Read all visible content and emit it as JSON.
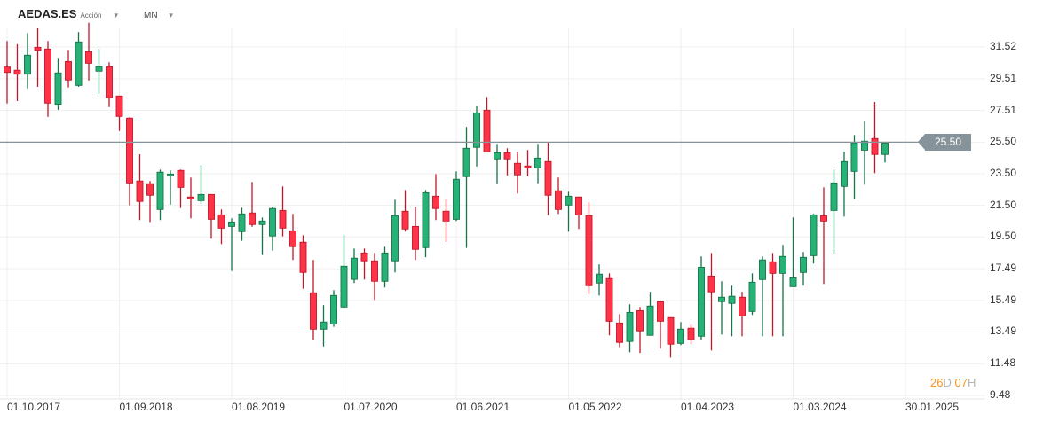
{
  "header": {
    "symbol": "AEDAS.ES",
    "type": "Acción",
    "period": "MN",
    "caret": "▾"
  },
  "current_price": "25.50",
  "countdown": {
    "days": "26",
    "days_unit": "D",
    "hours": "07",
    "hours_unit": "H"
  },
  "colors": {
    "up": "#26b276",
    "up_border": "#157347",
    "down": "#ff3347",
    "down_border": "#c0182a",
    "price_line": "#87939a",
    "countdown": "#f7931e"
  },
  "chart_data": {
    "type": "candlestick",
    "ylim": [
      9.48,
      31.52
    ],
    "y_ticks": [
      "31.52",
      "29.51",
      "27.51",
      "25.50",
      "23.50",
      "21.50",
      "19.50",
      "17.49",
      "15.49",
      "13.49",
      "11.48",
      "9.48"
    ],
    "x_ticks": [
      "01.10.2017",
      "01.09.2018",
      "01.08.2019",
      "01.07.2020",
      "01.06.2021",
      "01.05.2022",
      "01.04.2023",
      "01.03.2024",
      "30.01.2025"
    ],
    "ohlc": [
      [
        30.25,
        31.9,
        27.95,
        29.91
      ],
      [
        30.05,
        31.7,
        28.1,
        29.8
      ],
      [
        29.8,
        32.4,
        28.9,
        31.0
      ],
      [
        31.5,
        32.7,
        29.0,
        31.3
      ],
      [
        31.39,
        31.9,
        27.1,
        27.97
      ],
      [
        27.9,
        30.83,
        27.55,
        29.88
      ],
      [
        30.6,
        31.33,
        28.96,
        29.43
      ],
      [
        29.09,
        32.46,
        29.0,
        31.84
      ],
      [
        31.22,
        33.05,
        29.4,
        30.49
      ],
      [
        29.99,
        31.39,
        28.56,
        30.27
      ],
      [
        30.27,
        30.55,
        27.72,
        28.31
      ],
      [
        28.42,
        28.42,
        26.21,
        27.13
      ],
      [
        27.02,
        27.07,
        21.5,
        22.92
      ],
      [
        23.04,
        24.73,
        20.57,
        21.75
      ],
      [
        22.87,
        23.04,
        20.45,
        22.14
      ],
      [
        21.24,
        23.76,
        20.57,
        23.6
      ],
      [
        23.37,
        23.71,
        21.55,
        23.48
      ],
      [
        23.71,
        23.76,
        21.33,
        22.64
      ],
      [
        22.03,
        23.26,
        20.68,
        21.92
      ],
      [
        21.8,
        24.04,
        21.58,
        22.19
      ],
      [
        22.19,
        22.19,
        19.39,
        20.62
      ],
      [
        20.9,
        21.24,
        19.05,
        20.06
      ],
      [
        20.17,
        20.68,
        17.35,
        20.45
      ],
      [
        19.84,
        21.35,
        19.26,
        20.96
      ],
      [
        21.02,
        22.98,
        20.15,
        20.29
      ],
      [
        20.29,
        20.73,
        18.36,
        20.51
      ],
      [
        19.56,
        21.41,
        18.64,
        21.3
      ],
      [
        21.18,
        22.7,
        19.54,
        20.06
      ],
      [
        19.89,
        20.96,
        18.05,
        18.89
      ],
      [
        19.17,
        19.61,
        16.23,
        17.26
      ],
      [
        15.97,
        18.05,
        12.98,
        13.67
      ],
      [
        13.67,
        15.19,
        12.58,
        14.12
      ],
      [
        14.0,
        16.14,
        13.82,
        15.8
      ],
      [
        15.07,
        19.67,
        15.02,
        17.65
      ],
      [
        16.82,
        18.77,
        16.59,
        18.16
      ],
      [
        18.49,
        18.77,
        16.81,
        17.99
      ],
      [
        17.99,
        18.49,
        15.52,
        16.7
      ],
      [
        16.7,
        18.88,
        16.31,
        18.49
      ],
      [
        17.99,
        21.86,
        17.26,
        20.85
      ],
      [
        21.13,
        22.47,
        19.84,
        20.01
      ],
      [
        20.17,
        21.41,
        18.05,
        18.72
      ],
      [
        18.83,
        22.47,
        18.22,
        22.3
      ],
      [
        22.08,
        23.48,
        20.57,
        21.3
      ],
      [
        21.13,
        21.91,
        19.17,
        20.51
      ],
      [
        20.62,
        23.65,
        20.51,
        23.15
      ],
      [
        23.32,
        26.46,
        18.81,
        25.11
      ],
      [
        25.17,
        27.8,
        23.96,
        27.35
      ],
      [
        27.52,
        28.36,
        24.89,
        24.89
      ],
      [
        24.44,
        25.39,
        22.84,
        24.83
      ],
      [
        24.83,
        25.11,
        23.4,
        24.44
      ],
      [
        24.16,
        24.89,
        22.25,
        23.43
      ],
      [
        23.99,
        25.0,
        23.35,
        23.88
      ],
      [
        23.88,
        25.39,
        22.9,
        24.49
      ],
      [
        24.27,
        25.51,
        20.88,
        22.14
      ],
      [
        22.42,
        23.26,
        20.96,
        21.24
      ],
      [
        21.52,
        22.36,
        19.84,
        22.08
      ],
      [
        22.03,
        22.03,
        20.01,
        20.9
      ],
      [
        20.85,
        21.69,
        15.89,
        16.42
      ],
      [
        16.59,
        17.77,
        15.8,
        17.15
      ],
      [
        16.87,
        17.2,
        13.28,
        14.17
      ],
      [
        14.06,
        14.62,
        12.53,
        12.83
      ],
      [
        12.89,
        15.24,
        12.21,
        14.73
      ],
      [
        14.84,
        15.07,
        12.16,
        13.56
      ],
      [
        13.28,
        16.03,
        13.28,
        15.13
      ],
      [
        15.41,
        15.47,
        12.44,
        14.17
      ],
      [
        14.4,
        14.4,
        11.87,
        12.72
      ],
      [
        12.77,
        14.12,
        12.66,
        13.67
      ],
      [
        13.73,
        13.95,
        12.72,
        13.0
      ],
      [
        13.22,
        18.27,
        13.0,
        17.59
      ],
      [
        17.03,
        18.49,
        12.32,
        16.03
      ],
      [
        15.41,
        16.7,
        13.33,
        15.69
      ],
      [
        15.3,
        16.42,
        13.22,
        15.75
      ],
      [
        15.69,
        16.03,
        13.22,
        14.51
      ],
      [
        14.79,
        17.2,
        14.57,
        16.64
      ],
      [
        16.81,
        18.27,
        13.22,
        18.05
      ],
      [
        17.93,
        18.49,
        13.22,
        17.2
      ],
      [
        17.2,
        19.0,
        13.22,
        18.27
      ],
      [
        16.36,
        20.74,
        16.36,
        16.92
      ],
      [
        17.26,
        18.55,
        16.42,
        18.21
      ],
      [
        18.32,
        20.96,
        17.82,
        20.9
      ],
      [
        20.85,
        22.64,
        16.53,
        20.51
      ],
      [
        21.18,
        23.76,
        18.44,
        22.92
      ],
      [
        22.7,
        24.89,
        20.79,
        24.27
      ],
      [
        23.65,
        25.95,
        21.91,
        25.45
      ],
      [
        24.99,
        26.85,
        22.81,
        25.56
      ],
      [
        25.73,
        28.04,
        23.54,
        24.72
      ],
      [
        24.72,
        25.45,
        24.21,
        25.45
      ]
    ],
    "last_price": 25.5
  }
}
